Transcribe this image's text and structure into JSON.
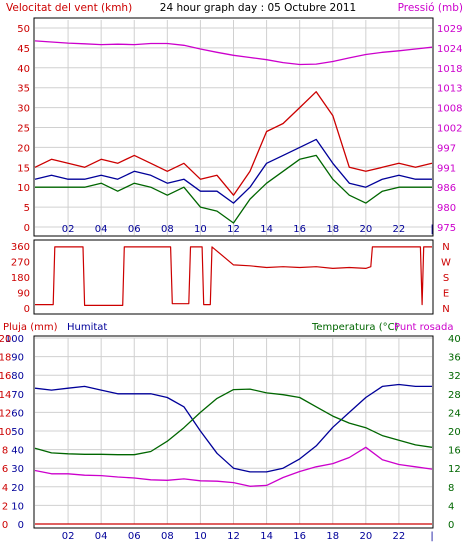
{
  "colors": {
    "red": "#cc0000",
    "blue": "#000099",
    "green": "#006600",
    "magenta": "#cc00cc",
    "grid": "#d0d0d0",
    "frame": "#000000"
  },
  "header": {
    "wind_title": "Velocitat del vent (kmh)",
    "main_title": "24 hour graph day : 05 Octubre 2011",
    "pressure_title": "Pressió (mb)"
  },
  "panel3_labels": {
    "rain": "Pluja (mm)",
    "humidity": "Humitat",
    "temperature": "Temperatura (°C)",
    "dewpoint": "Punt rosada"
  },
  "chart_data": [
    {
      "type": "line",
      "title": "Velocitat del vent (kmh) / Pressió (mb)",
      "x_ticks": [
        "02",
        "04",
        "06",
        "08",
        "10",
        "12",
        "14",
        "16",
        "18",
        "20",
        "22",
        "|"
      ],
      "y_left_ticks": [
        "0",
        "5",
        "10",
        "15",
        "20",
        "25",
        "30",
        "35",
        "40",
        "45",
        "50"
      ],
      "y_right_ticks": [
        "975",
        "980",
        "986",
        "991",
        "997",
        "1002",
        "1008",
        "1013",
        "1018",
        "1024",
        "1029"
      ],
      "ylim_left": [
        0,
        50
      ],
      "ylim_right": [
        975,
        1029
      ],
      "grid": true,
      "x_hours": [
        0,
        1,
        2,
        3,
        4,
        5,
        6,
        7,
        8,
        9,
        10,
        11,
        12,
        13,
        14,
        15,
        16,
        17,
        18,
        19,
        20,
        21,
        22,
        23,
        24
      ],
      "series": [
        {
          "name": "Velocitat del vent (kmh)",
          "axis": "left",
          "color": "red",
          "values": [
            15,
            17,
            16,
            15,
            17,
            16,
            18,
            16,
            14,
            16,
            12,
            13,
            8,
            14,
            24,
            26,
            30,
            34,
            28,
            15,
            14,
            15,
            16,
            15,
            16
          ]
        },
        {
          "name": "wind-avg",
          "axis": "left",
          "color": "blue",
          "values": [
            12,
            13,
            12,
            12,
            13,
            12,
            14,
            13,
            11,
            12,
            9,
            9,
            6,
            10,
            16,
            18,
            20,
            22,
            16,
            11,
            10,
            12,
            13,
            12,
            12
          ]
        },
        {
          "name": "wind-low",
          "axis": "left",
          "color": "green",
          "values": [
            10,
            10,
            10,
            10,
            11,
            9,
            11,
            10,
            8,
            10,
            5,
            4,
            1,
            7,
            11,
            14,
            17,
            18,
            12,
            8,
            6,
            9,
            10,
            10,
            10
          ]
        },
        {
          "name": "Pressió (mb)",
          "axis": "right",
          "color": "magenta",
          "values": [
            1025.5,
            1025.2,
            1024.9,
            1024.7,
            1024.5,
            1024.6,
            1024.5,
            1024.8,
            1024.8,
            1024.3,
            1023.3,
            1022.4,
            1021.6,
            1021.0,
            1020.4,
            1019.6,
            1019.1,
            1019.2,
            1019.9,
            1020.9,
            1021.8,
            1022.4,
            1022.8,
            1023.3,
            1023.8
          ]
        }
      ]
    },
    {
      "type": "line",
      "title": "Direcció del vent",
      "x_hours": [
        0,
        1.1,
        1.2,
        2.9,
        3.0,
        5.3,
        5.4,
        5.7,
        5.8,
        7.3,
        7.4,
        8.2,
        8.3,
        9.3,
        9.4,
        10.1,
        10.2,
        10.6,
        10.7,
        12.0,
        13.0,
        14.0,
        15.0,
        16.0,
        17.0,
        18.0,
        19.0,
        20.0,
        20.3,
        20.4,
        23.3,
        23.4,
        23.5,
        24.0
      ],
      "series": [
        {
          "name": "Direcció del vent",
          "color": "red",
          "values": [
            20,
            20,
            355,
            355,
            15,
            15,
            355,
            355,
            355,
            355,
            355,
            355,
            25,
            25,
            355,
            355,
            20,
            20,
            355,
            250,
            245,
            235,
            240,
            235,
            240,
            230,
            235,
            230,
            240,
            355,
            355,
            20,
            355,
            355
          ]
        }
      ],
      "y_ticks_left": [
        "0",
        "90",
        "180",
        "270",
        "360"
      ],
      "y_ticks_right": [
        "N",
        "E",
        "S",
        "W",
        "N"
      ],
      "ylim": [
        0,
        360
      ]
    },
    {
      "type": "line",
      "title": "Humitat / Temperatura (°C) / Punt rosada / Pluja (mm)",
      "x_ticks": [
        "02",
        "04",
        "06",
        "08",
        "10",
        "12",
        "14",
        "16",
        "18",
        "20",
        "22",
        "|"
      ],
      "y_left_ticks": [
        "0",
        "10",
        "20",
        "30",
        "40",
        "50",
        "60",
        "70",
        "80",
        "90",
        "100"
      ],
      "y_left_secondary_ticks": [
        "0",
        "2",
        "4",
        "6",
        "8",
        "10",
        "12",
        "14",
        "16",
        "18",
        "20"
      ],
      "y_right_ticks": [
        "0",
        "4",
        "8",
        "12",
        "16",
        "20",
        "24",
        "28",
        "32",
        "36",
        "40"
      ],
      "ylim_left": [
        0,
        100
      ],
      "ylim_right": [
        0,
        40
      ],
      "grid": true,
      "x_hours": [
        0,
        1,
        2,
        3,
        4,
        5,
        6,
        7,
        8,
        9,
        10,
        11,
        12,
        13,
        14,
        15,
        16,
        17,
        18,
        19,
        20,
        21,
        22,
        23,
        24
      ],
      "series": [
        {
          "name": "Humitat",
          "axis": "left",
          "color": "blue",
          "values": [
            73,
            72,
            73,
            74,
            72,
            70,
            70,
            70,
            68,
            63,
            50,
            38,
            30,
            28,
            28,
            30,
            35,
            42,
            52,
            60,
            68,
            74,
            75,
            74,
            74
          ]
        },
        {
          "name": "Temperatura (°C)",
          "axis": "right",
          "color": "green",
          "values": [
            16.3,
            15.3,
            15.1,
            15.0,
            15.0,
            14.9,
            14.9,
            15.6,
            17.8,
            20.7,
            24.0,
            27.0,
            28.9,
            29.0,
            28.2,
            27.8,
            27.2,
            25.2,
            23.2,
            21.7,
            20.7,
            19.0,
            18.0,
            17.0,
            16.5
          ]
        },
        {
          "name": "Punt rosada",
          "axis": "right",
          "color": "magenta",
          "values": [
            11.5,
            10.8,
            10.8,
            10.5,
            10.4,
            10.1,
            9.9,
            9.5,
            9.4,
            9.7,
            9.3,
            9.2,
            8.9,
            8.1,
            8.3,
            10.0,
            11.3,
            12.3,
            13.0,
            14.3,
            16.5,
            13.8,
            12.8,
            12.3,
            11.8
          ]
        },
        {
          "name": "Pluja (mm)",
          "axis": "left",
          "color": "red",
          "values": [
            0,
            0,
            0,
            0,
            0,
            0,
            0,
            0,
            0,
            0,
            0,
            0,
            0,
            0,
            0,
            0,
            0,
            0,
            0,
            0,
            0,
            0,
            0,
            0,
            0
          ]
        }
      ]
    }
  ]
}
